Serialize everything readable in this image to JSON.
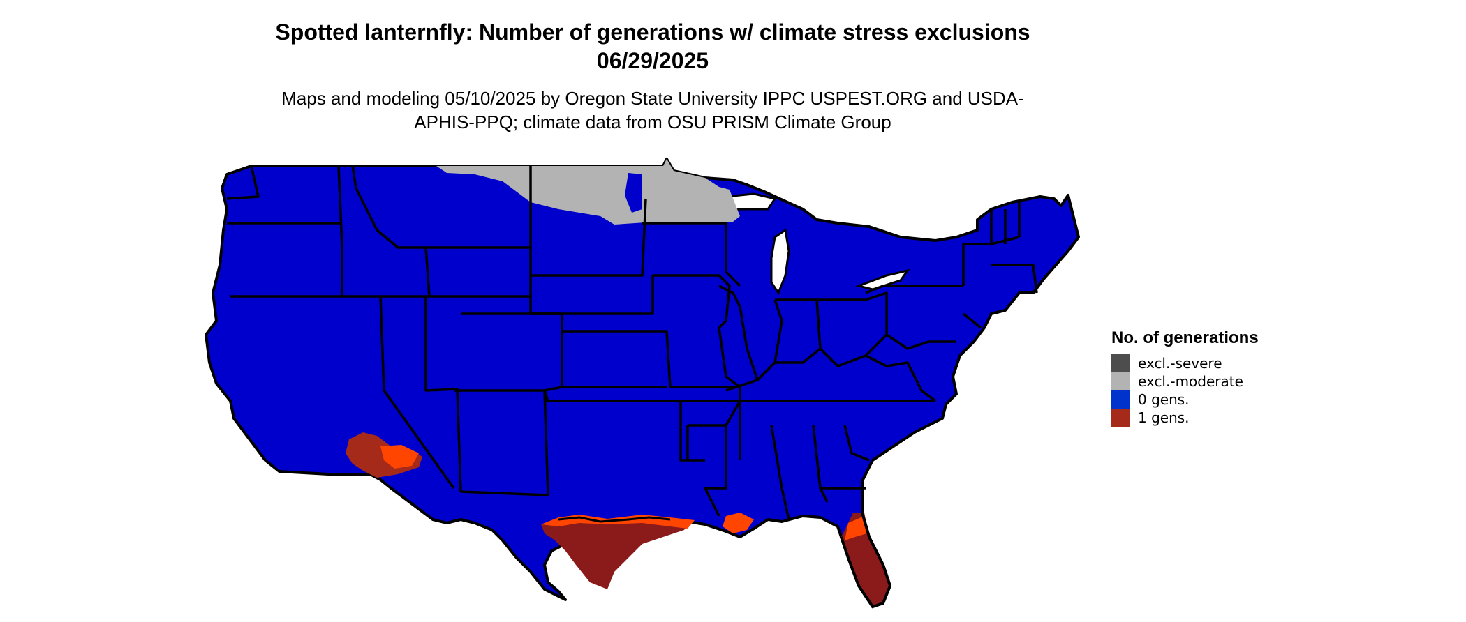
{
  "title": "Spotted lanternfly: Number of generations w/ climate stress exclusions 06/29/2025",
  "subtitle": "Maps and modeling 05/10/2025 by Oregon State University IPPC USPEST.ORG and USDA-APHIS-PPQ; climate data from OSU PRISM Climate Group",
  "map": {
    "region": "Contiguous United States",
    "base_color": "#0000CC",
    "border_color": "#000000",
    "highlight_color": "#8B1A1A",
    "edge_color": "#FF4500"
  },
  "legend": {
    "title": "No. of generations",
    "items": [
      {
        "label": "excl.-severe",
        "color": "#4D4D4D"
      },
      {
        "label": "excl.-moderate",
        "color": "#B3B3B3"
      },
      {
        "label": "0 gens.",
        "color": "#0033CC"
      },
      {
        "label": "1 gens.",
        "color": "#A52A1A"
      }
    ]
  }
}
